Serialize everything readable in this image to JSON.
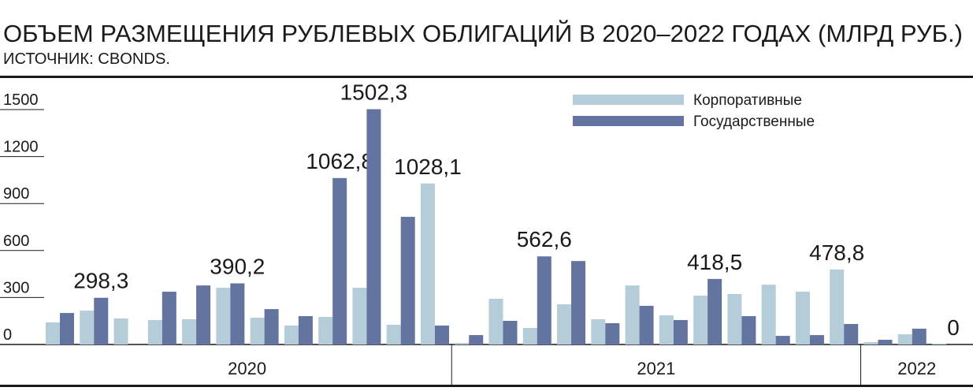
{
  "chart_data": {
    "type": "bar",
    "title": "ОБЪЕМ РАЗМЕЩЕНИЯ РУБЛЕВЫХ ОБЛИГАЦИЙ В 2020–2022 ГОДАХ (МЛРД РУБ.)",
    "subtitle": "ИСТОЧНИК: CBONDS.",
    "categories": [
      null,
      null,
      null,
      null,
      null,
      null,
      null,
      null,
      null,
      null,
      null,
      null,
      null,
      null,
      null,
      null,
      null,
      null,
      null,
      null,
      null,
      null,
      null,
      null,
      null,
      null,
      null
    ],
    "groups": [
      {
        "label": "2020",
        "count": 12
      },
      {
        "label": "2021",
        "count": 12
      },
      {
        "label": "2022",
        "count": 3
      }
    ],
    "series": [
      {
        "name": "Корпоративные",
        "color": "#b5cdd9",
        "values": [
          141,
          216,
          166,
          156,
          161,
          362,
          171,
          121,
          176,
          362,
          126,
          1028.1,
          10,
          292,
          106,
          257,
          161,
          377,
          186,
          312,
          322,
          382,
          337,
          478.8,
          15,
          65,
          5
        ],
        "value_labels": [
          null,
          null,
          null,
          null,
          null,
          null,
          null,
          null,
          null,
          null,
          null,
          "1028,1",
          null,
          null,
          null,
          null,
          null,
          null,
          null,
          null,
          null,
          null,
          null,
          "478,8",
          null,
          null,
          null
        ]
      },
      {
        "name": "Государственные",
        "color": "#62749f",
        "values": [
          201,
          298.3,
          0,
          337,
          377,
          390.2,
          226,
          181,
          1062.8,
          1502.3,
          815,
          121,
          60,
          151,
          562.6,
          533,
          136,
          247,
          156,
          418.5,
          181,
          55,
          60,
          131,
          30,
          101,
          0
        ],
        "value_labels": [
          null,
          "298,3",
          null,
          null,
          null,
          "390,2",
          null,
          null,
          "1062,8",
          "1502,3",
          null,
          null,
          null,
          null,
          "562,6",
          null,
          null,
          null,
          null,
          "418,5",
          null,
          null,
          null,
          null,
          null,
          null,
          "0"
        ]
      }
    ],
    "ylim": [
      0,
      1500
    ],
    "yticks": [
      0,
      300,
      600,
      900,
      1200,
      1500
    ],
    "legend": "top-right"
  }
}
